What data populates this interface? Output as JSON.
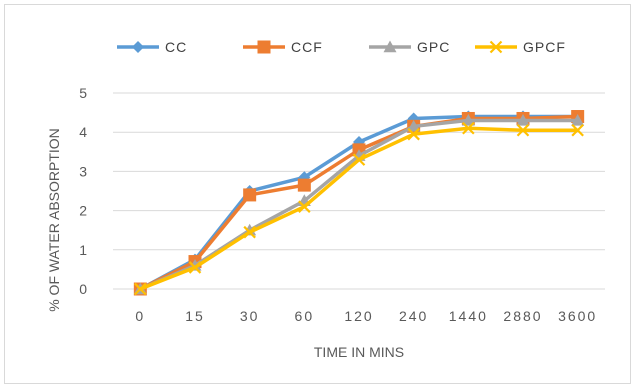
{
  "chart_data": {
    "type": "line",
    "categories": [
      "0",
      "15",
      "30",
      "60",
      "120",
      "240",
      "1440",
      "2880",
      "3600"
    ],
    "xlabel": "TIME IN MINS",
    "ylabel": "% OF WATER ABSORPTION",
    "ylim": [
      0,
      5
    ],
    "yticks": [
      "0",
      "1",
      "2",
      "3",
      "4",
      "5"
    ],
    "grid": true,
    "legend_position": "top",
    "series": [
      {
        "name": "CC",
        "color": "#5b9bd5",
        "marker": "diamond",
        "values": [
          0,
          0.75,
          2.5,
          2.85,
          3.75,
          4.35,
          4.4,
          4.4,
          4.4
        ]
      },
      {
        "name": "CCF",
        "color": "#ed7d31",
        "marker": "square",
        "values": [
          0,
          0.7,
          2.4,
          2.65,
          3.55,
          4.15,
          4.35,
          4.35,
          4.4
        ]
      },
      {
        "name": "GPC",
        "color": "#a5a5a5",
        "marker": "triangle",
        "values": [
          0,
          0.6,
          1.5,
          2.25,
          3.4,
          4.15,
          4.3,
          4.3,
          4.3
        ]
      },
      {
        "name": "GPCF",
        "color": "#ffc000",
        "marker": "x",
        "values": [
          0,
          0.55,
          1.45,
          2.1,
          3.3,
          3.95,
          4.1,
          4.05,
          4.05
        ]
      }
    ]
  }
}
